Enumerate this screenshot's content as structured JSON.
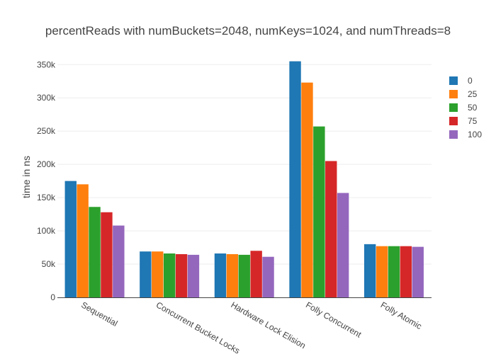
{
  "chart_data": {
    "type": "bar",
    "title": "percentReads with numBuckets=2048, numKeys=1024, and numThreads=8",
    "xlabel": "",
    "ylabel": "time in ns",
    "ylim": [
      0,
      362000
    ],
    "yticks": [
      0,
      50000,
      100000,
      150000,
      200000,
      250000,
      300000,
      350000
    ],
    "ytick_labels": [
      "0",
      "50k",
      "100k",
      "150k",
      "200k",
      "250k",
      "300k",
      "350k"
    ],
    "categories": [
      "Sequential",
      "Concurrent Bucket Locks",
      "Hardware Lock Elision",
      "Folly Concurrent",
      "Folly Atomic"
    ],
    "grid": true,
    "legend_position": "top-right",
    "series": [
      {
        "name": "0",
        "color": "#1f77b4",
        "values": [
          175000,
          69000,
          66000,
          355000,
          80000
        ]
      },
      {
        "name": "25",
        "color": "#ff7f0e",
        "values": [
          170000,
          69000,
          65000,
          323000,
          77000
        ]
      },
      {
        "name": "50",
        "color": "#2ca02c",
        "values": [
          136000,
          66000,
          64000,
          257000,
          77000
        ]
      },
      {
        "name": "75",
        "color": "#d62728",
        "values": [
          128000,
          65000,
          70000,
          205000,
          77000
        ]
      },
      {
        "name": "100",
        "color": "#9467bd",
        "values": [
          108000,
          64000,
          61000,
          157000,
          76000
        ]
      }
    ]
  }
}
